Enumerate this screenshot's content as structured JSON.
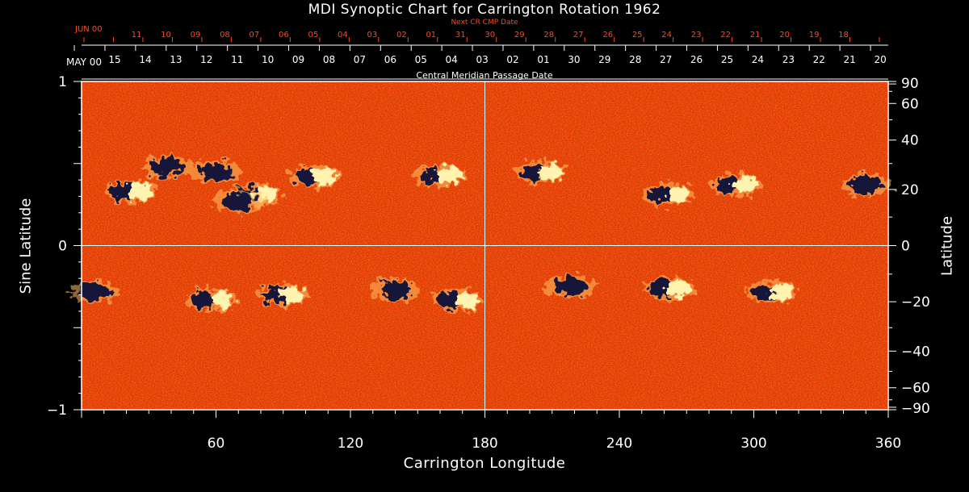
{
  "chart_data": {
    "type": "heatmap",
    "title": "MDI Synoptic Chart for Carrington Rotation 1962",
    "xlabel": "Carrington Longitude",
    "ylabel_left": "Sine Latitude",
    "ylabel_right": "Latitude",
    "top_axis_label": "Central Meridian Passage Date",
    "top_axis2_label": "Next CR CMP Date",
    "top_axis_month": "MAY 00",
    "top_axis2_month": "JUN 00",
    "xlim": [
      0,
      360
    ],
    "ylim": [
      -1,
      1
    ],
    "x_ticks": [
      60,
      120,
      180,
      240,
      300,
      360
    ],
    "y_ticks_left": [
      {
        "v": 1,
        "label": "1"
      },
      {
        "v": 0,
        "label": "0"
      },
      {
        "v": -1,
        "label": "−1"
      }
    ],
    "y_ticks_right": [
      {
        "v": 90,
        "label": "90"
      },
      {
        "v": 60,
        "label": "60"
      },
      {
        "v": 40,
        "label": "40"
      },
      {
        "v": 20,
        "label": "20"
      },
      {
        "v": 0,
        "label": "0"
      },
      {
        "v": -20,
        "label": "−20"
      },
      {
        "v": -40,
        "label": "−40"
      },
      {
        "v": -60,
        "label": "−60"
      },
      {
        "v": -90,
        "label": "−90"
      }
    ],
    "cmp_dates": [
      "15",
      "14",
      "13",
      "12",
      "11",
      "10",
      "09",
      "08",
      "07",
      "06",
      "05",
      "04",
      "03",
      "02",
      "01",
      "30",
      "29",
      "28",
      "27",
      "26",
      "25",
      "24",
      "23",
      "22",
      "21",
      "20"
    ],
    "next_cmp_dates": [
      "11",
      "10",
      "09",
      "08",
      "07",
      "06",
      "05",
      "04",
      "03",
      "02",
      "01",
      "31",
      "30",
      "29",
      "28",
      "27",
      "26",
      "25",
      "24",
      "23",
      "22",
      "21",
      "20",
      "19",
      "18"
    ],
    "gridlines": {
      "x": [
        180
      ],
      "y": [
        0
      ]
    },
    "colormap": {
      "background": "#e03000",
      "mid": "#ff5a10",
      "positive": "#fff3b0",
      "negative": "#15153a"
    },
    "active_regions": [
      {
        "lon": 22,
        "lat": 0.33,
        "polarity": "mixed"
      },
      {
        "lon": 38,
        "lat": 0.48,
        "polarity": "negative"
      },
      {
        "lon": 60,
        "lat": 0.45,
        "polarity": "negative"
      },
      {
        "lon": 78,
        "lat": 0.31,
        "polarity": "mixed"
      },
      {
        "lon": 70,
        "lat": 0.27,
        "polarity": "negative"
      },
      {
        "lon": 104,
        "lat": 0.42,
        "polarity": "mixed"
      },
      {
        "lon": 160,
        "lat": 0.43,
        "polarity": "mixed"
      },
      {
        "lon": 205,
        "lat": 0.45,
        "polarity": "mixed"
      },
      {
        "lon": 262,
        "lat": 0.31,
        "polarity": "mixed"
      },
      {
        "lon": 292,
        "lat": 0.37,
        "polarity": "mixed"
      },
      {
        "lon": 350,
        "lat": 0.37,
        "polarity": "negative"
      },
      {
        "lon": 6,
        "lat": -0.28,
        "polarity": "negative"
      },
      {
        "lon": 58,
        "lat": -0.33,
        "polarity": "mixed"
      },
      {
        "lon": 90,
        "lat": -0.3,
        "polarity": "mixed"
      },
      {
        "lon": 140,
        "lat": -0.27,
        "polarity": "negative"
      },
      {
        "lon": 168,
        "lat": -0.33,
        "polarity": "mixed"
      },
      {
        "lon": 218,
        "lat": -0.25,
        "polarity": "negative"
      },
      {
        "lon": 262,
        "lat": -0.26,
        "polarity": "mixed"
      },
      {
        "lon": 308,
        "lat": -0.28,
        "polarity": "mixed"
      }
    ]
  }
}
